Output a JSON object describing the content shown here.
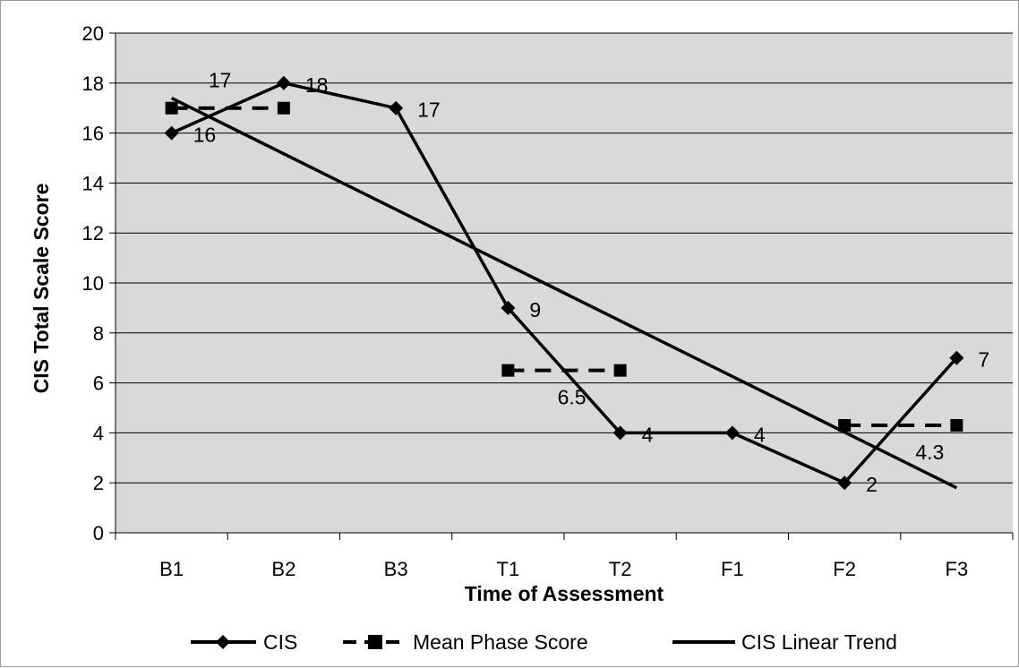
{
  "chart_data": {
    "type": "line",
    "categories": [
      "B1",
      "B2",
      "B3",
      "T1",
      "T2",
      "F1",
      "F2",
      "F3"
    ],
    "xlabel": "Time of Assessment",
    "ylabel": "CIS Total Scale Score",
    "ylim": [
      0,
      20
    ],
    "ytick_step": 2,
    "grid": true,
    "legend_position": "bottom",
    "series": [
      {
        "name": "CIS",
        "marker": "diamond",
        "line": "solid",
        "values": [
          16,
          18,
          17,
          9,
          4,
          4,
          2,
          7
        ],
        "labels": [
          "16",
          "18",
          "17",
          "9",
          "4",
          "4",
          "2",
          "7"
        ]
      },
      {
        "name": "Mean Phase Score",
        "marker": "square",
        "line": "dashed",
        "segments": [
          {
            "x": [
              "B1",
              "B2"
            ],
            "y": [
              17,
              17
            ],
            "label": "17"
          },
          {
            "x": [
              "T1",
              "T2"
            ],
            "y": [
              6.5,
              6.5
            ],
            "label": "6.5"
          },
          {
            "x": [
              "F2",
              "F3"
            ],
            "y": [
              4.3,
              4.3
            ],
            "label": "4.3"
          }
        ]
      },
      {
        "name": "CIS Linear Trend",
        "marker": "none",
        "line": "solid",
        "x": [
          "B1",
          "F3"
        ],
        "y": [
          17.4,
          1.8
        ]
      }
    ],
    "colors": {
      "plot_background": "#d9d9d9",
      "line": "#000000",
      "grid": "#000000"
    }
  }
}
